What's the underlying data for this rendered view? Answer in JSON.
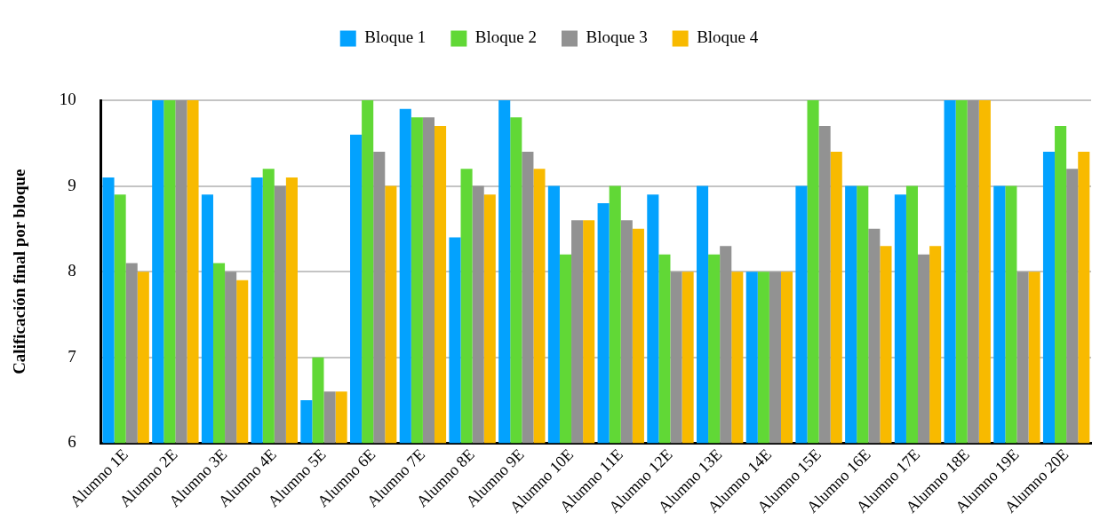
{
  "chart_data": {
    "type": "bar",
    "ylabel": "Calificación final por bloque",
    "categories": [
      "Alumno 1E",
      "Alumno 2E",
      "Alumno 3E",
      "Alumno 4E",
      "Alumno 5E",
      "Alumno 6E",
      "Alumno 7E",
      "Alumno 8E",
      "Alumno 9E",
      "Alumno 10E",
      "Alumno 11E",
      "Alumno 12E",
      "Alumno 13E",
      "Alumno 14E",
      "Alumno 15E",
      "Alumno 16E",
      "Alumno 17E",
      "Alumno 18E",
      "Alumno 19E",
      "Alumno 20E"
    ],
    "series": [
      {
        "name": "Bloque 1",
        "color": "#03a2fe",
        "values": [
          9.1,
          10,
          8.9,
          9.1,
          6.5,
          9.6,
          9.9,
          8.4,
          10,
          9.0,
          8.8,
          8.9,
          9.0,
          8.0,
          9.0,
          9.0,
          8.9,
          10,
          9.0,
          9.4
        ]
      },
      {
        "name": "Bloque 2",
        "color": "#61d836",
        "values": [
          8.9,
          10,
          8.1,
          9.2,
          7.0,
          10,
          9.8,
          9.2,
          9.8,
          8.2,
          9.0,
          8.2,
          8.2,
          8.0,
          10,
          9.0,
          9.0,
          10,
          9.0,
          9.7
        ]
      },
      {
        "name": "Bloque 3",
        "color": "#929292",
        "values": [
          8.1,
          10,
          8.0,
          9.0,
          6.6,
          9.4,
          9.8,
          9.0,
          9.4,
          8.6,
          8.6,
          8.0,
          8.3,
          8.0,
          9.7,
          8.5,
          8.2,
          10,
          8.0,
          9.2
        ]
      },
      {
        "name": "Bloque 4",
        "color": "#f8ba00",
        "values": [
          8.0,
          10,
          7.9,
          9.1,
          6.6,
          9.0,
          9.7,
          8.9,
          9.2,
          8.6,
          8.5,
          8.0,
          8.0,
          8.0,
          9.4,
          8.3,
          8.3,
          10,
          8.0,
          9.4
        ]
      }
    ],
    "ylim": [
      6,
      10
    ],
    "yticks": [
      6,
      7,
      8,
      9,
      10
    ],
    "grid": "y",
    "legend": "top"
  }
}
